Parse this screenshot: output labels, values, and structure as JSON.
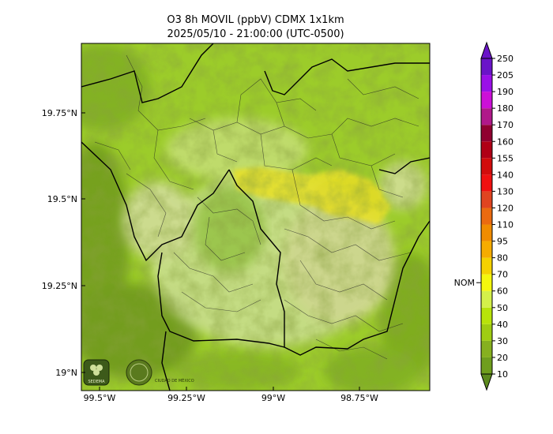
{
  "title": {
    "line1": "O3 8h MOVIL (ppbV) CDMX 1x1km",
    "line2": "2025/05/10 - 21:00:00 (UTC-0500)"
  },
  "axes": {
    "x_ticks": [
      "99.5°W",
      "99.25°W",
      "99°W",
      "98.75°W"
    ],
    "y_ticks": [
      "19.75°N",
      "19.5°N",
      "19.25°N",
      "19°N"
    ]
  },
  "colorbar": {
    "levels": [
      "10",
      "20",
      "30",
      "40",
      "50",
      "60",
      "70",
      "80",
      "95",
      "110",
      "120",
      "130",
      "140",
      "155",
      "160",
      "170",
      "180",
      "190",
      "205",
      "250"
    ],
    "colors": [
      "#5c8a1e",
      "#6f9e1d",
      "#86b01f",
      "#9fcc12",
      "#b8e30a",
      "#d4f04a",
      "#f4f70d",
      "#f5d200",
      "#f6ac00",
      "#f08c00",
      "#ea6a10",
      "#e04420",
      "#f01010",
      "#d20c0c",
      "#b00016",
      "#900030",
      "#b0188a",
      "#cc10d8",
      "#9a10e8",
      "#6a14c8"
    ],
    "nom_label": "NOM",
    "nom_value": 65
  },
  "logos": [
    {
      "icon": "sedema-logo",
      "text": "SEDEMA"
    },
    {
      "icon": "cdmx-seal-logo",
      "text": "CIUDAD DE MÉXICO"
    }
  ],
  "colors": {
    "base_green": "#9ccc2a",
    "dark_green": "#6f9a1c",
    "pale_area": "#d8e8a0",
    "ozone_yellow": "#e6e02a"
  }
}
